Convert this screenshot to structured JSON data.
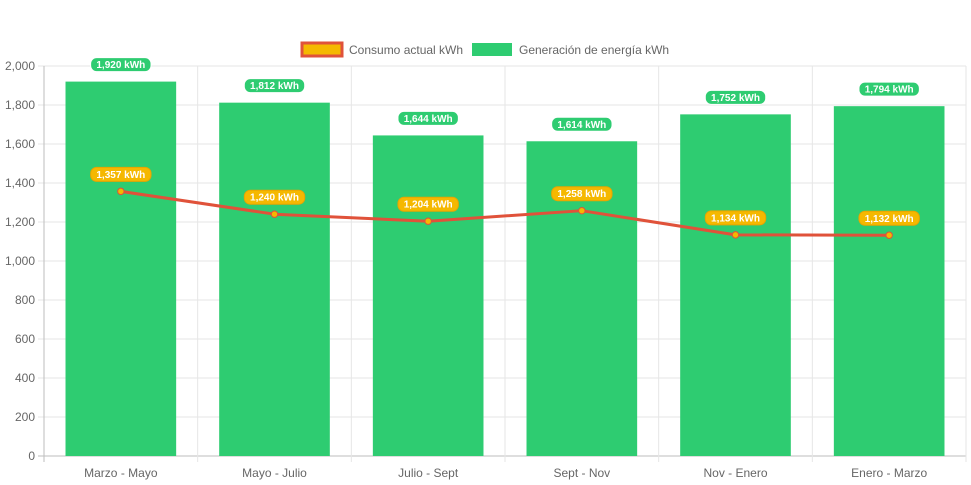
{
  "chart_data": {
    "type": "bar",
    "categories": [
      "Marzo - Mayo",
      "Mayo - Julio",
      "Julio - Sept",
      "Sept - Nov",
      "Nov - Enero",
      "Enero - Marzo"
    ],
    "ylim": [
      0,
      2000
    ],
    "yticks": [
      "0",
      "200",
      "400",
      "600",
      "800",
      "1,000",
      "1,200",
      "1,400",
      "1,600",
      "1,800",
      "2,000"
    ],
    "grid": true,
    "legend_position": "top-center",
    "series": [
      {
        "name": "Consumo actual kWh",
        "type": "line",
        "color": "#e0523a",
        "point_color": "#f5b800",
        "values": [
          1357,
          1240,
          1204,
          1258,
          1134,
          1132
        ],
        "labels": [
          "1,357 kWh",
          "1,240 kWh",
          "1,204 kWh",
          "1,258 kWh",
          "1,134 kWh",
          "1,132 kWh"
        ]
      },
      {
        "name": "Generación de energía kWh",
        "type": "bar",
        "color": "#2ecc71",
        "values": [
          1920,
          1812,
          1644,
          1614,
          1752,
          1794
        ],
        "labels": [
          "1,920 kWh",
          "1,812 kWh",
          "1,644 kWh",
          "1,614 kWh",
          "1,752 kWh",
          "1,794 kWh"
        ]
      }
    ]
  }
}
